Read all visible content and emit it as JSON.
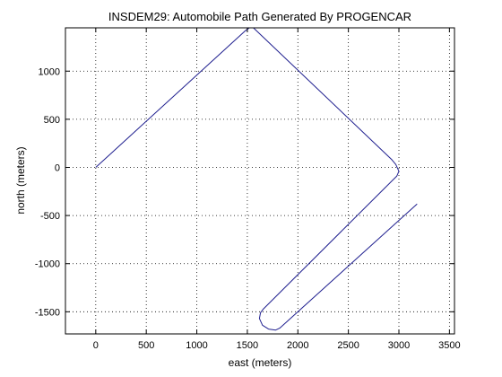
{
  "chart_data": {
    "type": "line",
    "title": "INSDEM29:  Automobile Path Generated By PROGENCAR",
    "xlabel": "east (meters)",
    "ylabel": "north (meters)",
    "xlim": [
      -300,
      3550
    ],
    "ylim": [
      -1730,
      1450
    ],
    "xticks": [
      0,
      500,
      1000,
      1500,
      2000,
      2500,
      3000,
      3500
    ],
    "yticks": [
      -1500,
      -1000,
      -500,
      0,
      500,
      1000
    ],
    "grid": true,
    "line_color": "#1f1f8f",
    "series": [
      {
        "x": [
          0,
          1480,
          1520,
          1560,
          1590,
          2930,
          2970,
          3000,
          2980,
          2950,
          1660,
          1630,
          1620,
          1650,
          1710,
          1780,
          1820,
          3180
        ],
        "y": [
          0,
          1420,
          1450,
          1450,
          1420,
          80,
          30,
          -40,
          -90,
          -120,
          -1470,
          -1510,
          -1570,
          -1640,
          -1680,
          -1690,
          -1670,
          -380
        ]
      }
    ]
  }
}
